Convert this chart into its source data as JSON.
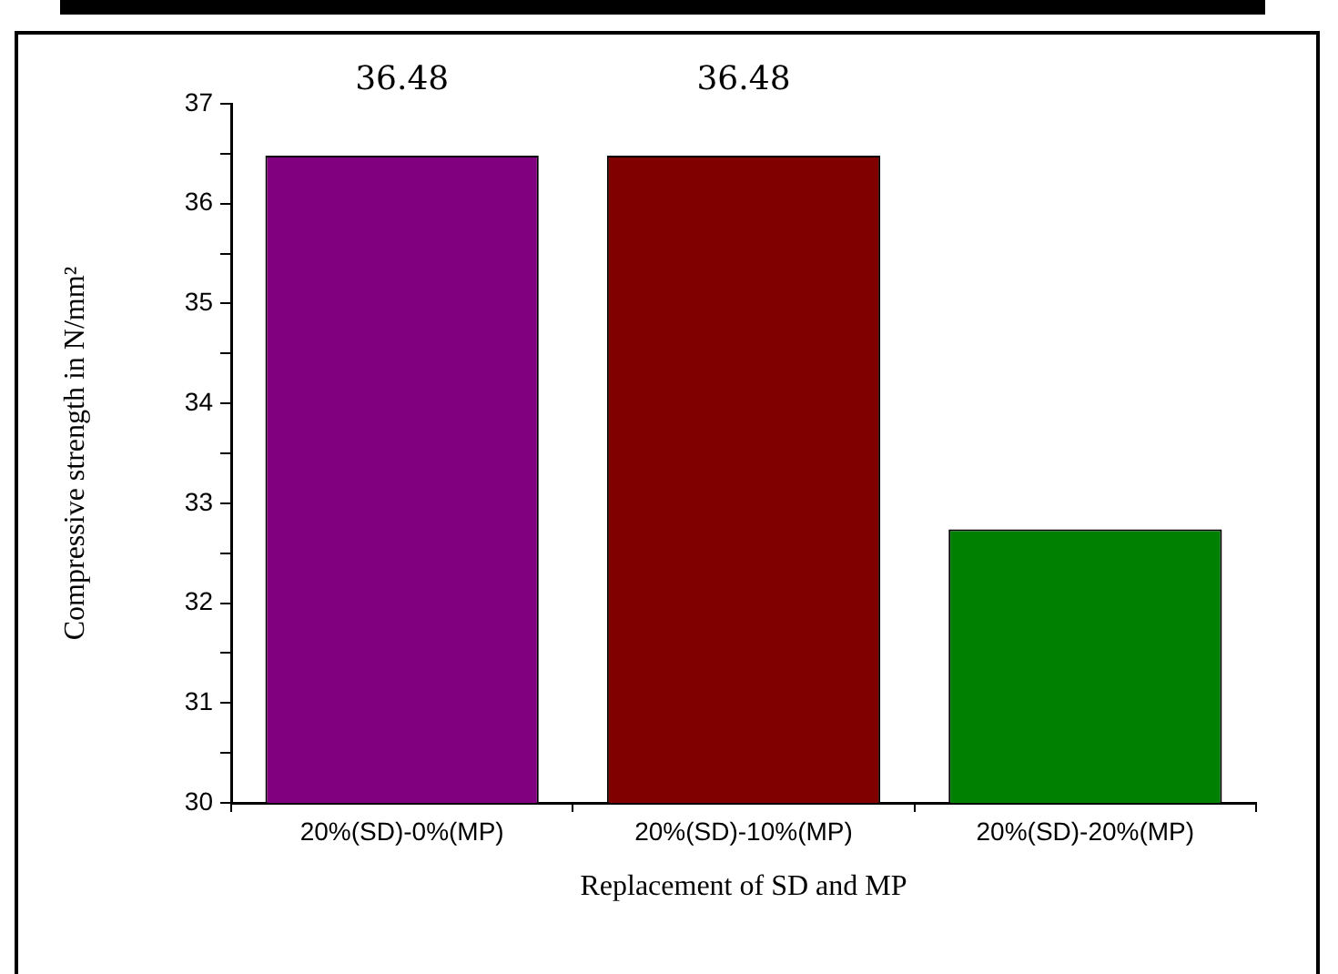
{
  "chart_data": {
    "type": "bar",
    "xlabel": "Replacement of SD and MP",
    "ylabel": "Compressive strength in N/mm²",
    "categories": [
      "20%(SD)-0%(MP)",
      "20%(SD)-10%(MP)",
      "20%(SD)-20%(MP)"
    ],
    "values": [
      36.48,
      36.48,
      32.74
    ],
    "colors": [
      "#800080",
      "#800000",
      "#008000"
    ],
    "value_labels": [
      "36.48",
      "36.48",
      null
    ],
    "ylim": [
      30,
      37
    ],
    "yticks": [
      30,
      {
        "value": 30.5,
        "label": null
      },
      31,
      {
        "value": 31.5,
        "label": null
      },
      32,
      {
        "value": 32.5,
        "label": null
      },
      33,
      {
        "value": 33.5,
        "label": null
      },
      34,
      {
        "value": 34.5,
        "label": null
      },
      35,
      {
        "value": 35.5,
        "label": null
      },
      36,
      {
        "value": 36.5,
        "label": null
      },
      37
    ],
    "grid": false,
    "legend": false
  }
}
